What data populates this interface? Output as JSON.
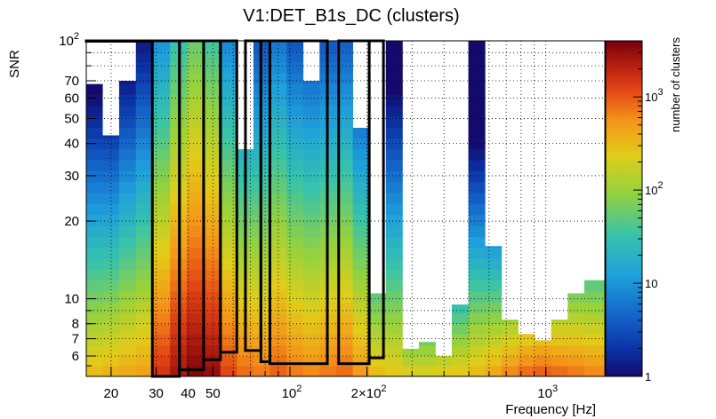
{
  "chart_data": {
    "type": "heatmap",
    "title": "V1:DET_B1s_DC (clusters)",
    "xlabel": "Frequency [Hz]",
    "ylabel": "SNR",
    "colorbar_label": "number of clusters",
    "xscale": "log",
    "yscale": "log",
    "xlim": [
      16,
      1700
    ],
    "ylim": [
      5,
      100
    ],
    "zlim": [
      1,
      4000
    ],
    "x_ticks_major": [
      {
        "value": 20,
        "label": "20"
      },
      {
        "value": 30,
        "label": "30"
      },
      {
        "value": 40,
        "label": "40"
      },
      {
        "value": 50,
        "label": "50"
      },
      {
        "value": 100,
        "base": "10",
        "exp": "2"
      },
      {
        "value": 200,
        "base": "2×10",
        "exp": "2"
      },
      {
        "value": 1000,
        "base": "10",
        "exp": "3"
      }
    ],
    "y_ticks_major": [
      {
        "value": 6,
        "label": "6"
      },
      {
        "value": 7,
        "label": "7"
      },
      {
        "value": 8,
        "label": "8"
      },
      {
        "value": 10,
        "label": "10"
      },
      {
        "value": 20,
        "label": "20"
      },
      {
        "value": 30,
        "label": "30"
      },
      {
        "value": 40,
        "label": "40"
      },
      {
        "value": 50,
        "label": "50"
      },
      {
        "value": 60,
        "label": "60"
      },
      {
        "value": 70,
        "label": "70"
      },
      {
        "value": 100,
        "base": "10",
        "exp": "2"
      }
    ],
    "colorbar_ticks": [
      {
        "value": 1,
        "label": "1"
      },
      {
        "value": 10,
        "label": "10"
      },
      {
        "value": 100,
        "base": "10",
        "exp": "2"
      },
      {
        "value": 1000,
        "base": "10",
        "exp": "3"
      }
    ],
    "x_bin_edges": [
      16,
      18.5,
      21.5,
      25,
      29,
      34,
      39.5,
      46,
      53.5,
      62,
      72,
      83.5,
      97,
      112.5,
      130.5,
      151.5,
      176,
      204,
      237,
      275,
      319,
      370,
      429,
      498,
      578,
      671,
      779,
      904,
      1049,
      1217,
      1413,
      1700
    ],
    "snr_thresholds": [
      5.0,
      5.5,
      6.0,
      6.6,
      7.3,
      8.0,
      8.8,
      9.7,
      10.7,
      11.8,
      13.0,
      14.3,
      15.8,
      17.4,
      19.2,
      21.2,
      23.4,
      25.8,
      28.4,
      31.3,
      34.5,
      38.0,
      41.9,
      46.2,
      50.9,
      56.1,
      61.9,
      68.2,
      75.2,
      82.9,
      91.4,
      100.0
    ],
    "column_profiles": [
      {
        "bin": 1,
        "max_snr": 68,
        "peak": 300,
        "slope": 2.3
      },
      {
        "bin": 2,
        "max_snr": 43,
        "peak": 350,
        "slope": 2.4
      },
      {
        "bin": 3,
        "max_snr": 70,
        "peak": 400,
        "slope": 2.2
      },
      {
        "bin": 4,
        "max_snr": 100,
        "peak": 450,
        "slope": 2.0
      },
      {
        "bin": 5,
        "max_snr": 100,
        "peak": 1500,
        "slope": 1.7
      },
      {
        "bin": 6,
        "max_snr": 100,
        "peak": 2500,
        "slope": 1.5
      },
      {
        "bin": 7,
        "max_snr": 100,
        "peak": 3500,
        "slope": 1.4
      },
      {
        "bin": 8,
        "max_snr": 100,
        "peak": 3000,
        "slope": 1.5
      },
      {
        "bin": 9,
        "max_snr": 100,
        "peak": 1200,
        "slope": 1.7
      },
      {
        "bin": 10,
        "max_snr": 38,
        "peak": 800,
        "slope": 1.9
      },
      {
        "bin": 11,
        "max_snr": 100,
        "peak": 700,
        "slope": 1.8
      },
      {
        "bin": 12,
        "max_snr": 100,
        "peak": 900,
        "slope": 1.7
      },
      {
        "bin": 13,
        "max_snr": 100,
        "peak": 700,
        "slope": 1.8
      },
      {
        "bin": 14,
        "max_snr": 70,
        "peak": 600,
        "slope": 1.8
      },
      {
        "bin": 15,
        "max_snr": 100,
        "peak": 700,
        "slope": 1.8
      },
      {
        "bin": 16,
        "max_snr": 100,
        "peak": 800,
        "slope": 1.8
      },
      {
        "bin": 17,
        "max_snr": 46,
        "peak": 500,
        "slope": 2.0
      },
      {
        "bin": 18,
        "max_snr": 10.5,
        "peak": 300,
        "slope": 2.6
      },
      {
        "bin": 19,
        "max_snr": 100,
        "peak": 250,
        "slope": 2.2
      },
      {
        "bin": 20,
        "max_snr": 6.4,
        "peak": 200,
        "slope": 4.0
      },
      {
        "bin": 21,
        "max_snr": 6.8,
        "peak": 200,
        "slope": 4.0
      },
      {
        "bin": 22,
        "max_snr": 6.0,
        "peak": 220,
        "slope": 4.0
      },
      {
        "bin": 23,
        "max_snr": 9.5,
        "peak": 250,
        "slope": 3.6
      },
      {
        "bin": 24,
        "max_snr": 100,
        "peak": 300,
        "slope": 2.8
      },
      {
        "bin": 25,
        "max_snr": 16,
        "peak": 400,
        "slope": 3.2
      },
      {
        "bin": 26,
        "max_snr": 8.3,
        "peak": 600,
        "slope": 3.8
      },
      {
        "bin": 27,
        "max_snr": 7.3,
        "peak": 800,
        "slope": 4.0
      },
      {
        "bin": 28,
        "max_snr": 6.9,
        "peak": 900,
        "slope": 4.0
      },
      {
        "bin": 29,
        "max_snr": 8.3,
        "peak": 800,
        "slope": 3.8
      },
      {
        "bin": 30,
        "max_snr": 10.5,
        "peak": 700,
        "slope": 3.4
      },
      {
        "bin": 31,
        "max_snr": 11.8,
        "peak": 600,
        "slope": 3.2
      }
    ],
    "overlay_boxes": [
      {
        "x_from": 16,
        "x_to": 29,
        "snr_from": 100,
        "snr_to": 100
      },
      {
        "x_from": 29,
        "x_to": 37,
        "snr_from": 5.0,
        "snr_to": 100
      },
      {
        "x_from": 37,
        "x_to": 46,
        "snr_from": 5.3,
        "snr_to": 100
      },
      {
        "x_from": 46,
        "x_to": 53.5,
        "snr_from": 5.8,
        "snr_to": 100
      },
      {
        "x_from": 53.5,
        "x_to": 62,
        "snr_from": 6.2,
        "snr_to": 100
      },
      {
        "x_from": 67,
        "x_to": 77,
        "snr_from": 6.3,
        "snr_to": 100
      },
      {
        "x_from": 77,
        "x_to": 83.5,
        "snr_from": 5.7,
        "snr_to": 100
      },
      {
        "x_from": 83.5,
        "x_to": 140,
        "snr_from": 5.6,
        "snr_to": 100
      },
      {
        "x_from": 155,
        "x_to": 204,
        "snr_from": 5.6,
        "snr_to": 100
      },
      {
        "x_from": 204,
        "x_to": 232,
        "snr_from": 5.9,
        "snr_to": 100
      }
    ]
  }
}
